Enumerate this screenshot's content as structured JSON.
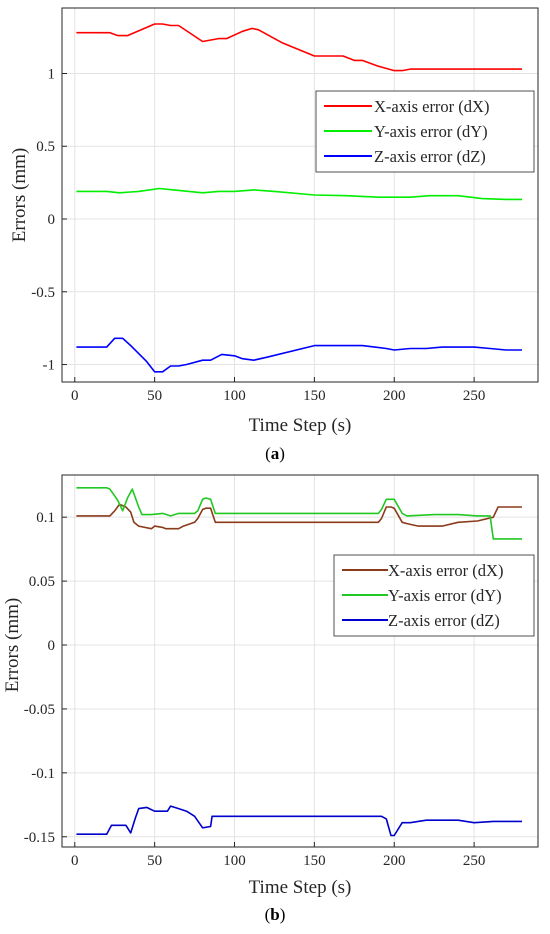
{
  "figure": {
    "captions": [
      {
        "open": "(",
        "letter": "a",
        "close": ")"
      },
      {
        "open": "(",
        "letter": "b",
        "close": ")"
      }
    ]
  },
  "chart_data": [
    {
      "type": "line",
      "panel": "a",
      "xlabel": "Time Step (s)",
      "ylabel": "Errors (mm)",
      "xlim": [
        -8,
        290
      ],
      "ylim": [
        -1.12,
        1.45
      ],
      "xticks": [
        0,
        50,
        100,
        150,
        200,
        250
      ],
      "xtick_labels": [
        "0",
        "50",
        "100",
        "150",
        "200",
        "250"
      ],
      "yticks": [
        -1,
        -0.5,
        0,
        0.5,
        1
      ],
      "ytick_labels": [
        "-1",
        "-0.5",
        "0",
        "0.5",
        "1"
      ],
      "grid": true,
      "legend_position": "right, upper-middle",
      "series": [
        {
          "name": "X-axis error (dX)",
          "color": "#ff0000",
          "x": [
            1,
            22,
            27,
            33,
            50,
            55,
            60,
            65,
            80,
            90,
            95,
            105,
            111,
            115,
            130,
            150,
            160,
            168,
            175,
            180,
            190,
            200,
            205,
            210,
            220,
            230,
            240,
            250,
            260,
            270,
            280
          ],
          "y": [
            1.28,
            1.28,
            1.26,
            1.26,
            1.34,
            1.34,
            1.33,
            1.33,
            1.22,
            1.24,
            1.24,
            1.29,
            1.31,
            1.3,
            1.21,
            1.12,
            1.12,
            1.12,
            1.09,
            1.09,
            1.05,
            1.02,
            1.02,
            1.03,
            1.03,
            1.03,
            1.03,
            1.03,
            1.03,
            1.03,
            1.03
          ]
        },
        {
          "name": "Y-axis error (dY)",
          "color": "#00ee00",
          "x": [
            1,
            20,
            28,
            40,
            53,
            62,
            80,
            90,
            100,
            112,
            125,
            150,
            170,
            190,
            200,
            210,
            222,
            240,
            255,
            270,
            280
          ],
          "y": [
            0.19,
            0.19,
            0.18,
            0.19,
            0.21,
            0.2,
            0.18,
            0.19,
            0.19,
            0.2,
            0.19,
            0.165,
            0.16,
            0.15,
            0.15,
            0.15,
            0.16,
            0.16,
            0.14,
            0.135,
            0.135
          ]
        },
        {
          "name": "Z-axis error (dZ)",
          "color": "#0000ff",
          "x": [
            1,
            20,
            25,
            30,
            35,
            45,
            50,
            55,
            60,
            65,
            70,
            80,
            85,
            92,
            100,
            105,
            112,
            120,
            150,
            170,
            180,
            195,
            200,
            210,
            220,
            230,
            240,
            250,
            260,
            270,
            280
          ],
          "y": [
            -0.88,
            -0.88,
            -0.82,
            -0.82,
            -0.87,
            -0.98,
            -1.05,
            -1.05,
            -1.01,
            -1.01,
            -1.0,
            -0.97,
            -0.97,
            -0.93,
            -0.94,
            -0.96,
            -0.97,
            -0.95,
            -0.87,
            -0.87,
            -0.87,
            -0.89,
            -0.9,
            -0.89,
            -0.89,
            -0.88,
            -0.88,
            -0.88,
            -0.89,
            -0.9,
            -0.9
          ]
        }
      ]
    },
    {
      "type": "line",
      "panel": "b",
      "xlabel": "Time Step (s)",
      "ylabel": "Errors (mm)",
      "xlim": [
        -8,
        290
      ],
      "ylim": [
        -0.158,
        0.133
      ],
      "xticks": [
        0,
        50,
        100,
        150,
        200,
        250
      ],
      "xtick_labels": [
        "0",
        "50",
        "100",
        "150",
        "200",
        "250"
      ],
      "yticks": [
        -0.15,
        -0.1,
        -0.05,
        0,
        0.05,
        0.1
      ],
      "ytick_labels": [
        "-0.15",
        "-0.1",
        "-0.05",
        "0",
        "0.05",
        "0.1"
      ],
      "grid": true,
      "legend_position": "right, upper-middle",
      "series": [
        {
          "name": "X-axis error (dX)",
          "color": "#8b3a1a",
          "x": [
            1,
            22,
            25,
            28,
            32,
            35,
            37,
            40,
            48,
            50,
            55,
            57,
            65,
            68,
            75,
            77,
            80,
            82,
            85,
            88,
            190,
            192,
            195,
            198,
            200,
            205,
            208,
            215,
            230,
            240,
            252,
            262,
            265,
            280
          ],
          "y": [
            0.101,
            0.101,
            0.105,
            0.11,
            0.108,
            0.104,
            0.096,
            0.093,
            0.091,
            0.093,
            0.092,
            0.091,
            0.091,
            0.093,
            0.096,
            0.099,
            0.106,
            0.107,
            0.107,
            0.096,
            0.096,
            0.099,
            0.108,
            0.108,
            0.107,
            0.096,
            0.095,
            0.093,
            0.093,
            0.096,
            0.097,
            0.1,
            0.108,
            0.108
          ]
        },
        {
          "name": "Y-axis error (dY)",
          "color": "#22c822",
          "x": [
            1,
            20,
            22,
            27,
            30,
            33,
            36,
            40,
            42,
            48,
            55,
            60,
            65,
            75,
            77,
            80,
            82,
            85,
            88,
            190,
            192,
            195,
            198,
            200,
            205,
            208,
            225,
            240,
            252,
            260,
            262,
            280
          ],
          "y": [
            0.123,
            0.123,
            0.122,
            0.113,
            0.105,
            0.115,
            0.122,
            0.108,
            0.102,
            0.102,
            0.103,
            0.101,
            0.103,
            0.103,
            0.105,
            0.114,
            0.115,
            0.114,
            0.103,
            0.103,
            0.106,
            0.114,
            0.114,
            0.114,
            0.103,
            0.101,
            0.102,
            0.102,
            0.101,
            0.101,
            0.083,
            0.083
          ]
        },
        {
          "name": "Z-axis error (dZ)",
          "color": "#0000cc",
          "x": [
            1,
            20,
            23,
            32,
            35,
            38,
            40,
            45,
            50,
            58,
            60,
            65,
            70,
            75,
            80,
            85,
            86,
            180,
            192,
            195,
            198,
            200,
            205,
            210,
            220,
            240,
            250,
            262,
            270,
            280
          ],
          "y": [
            -0.148,
            -0.148,
            -0.141,
            -0.141,
            -0.147,
            -0.135,
            -0.128,
            -0.127,
            -0.13,
            -0.13,
            -0.126,
            -0.128,
            -0.13,
            -0.134,
            -0.143,
            -0.142,
            -0.134,
            -0.134,
            -0.134,
            -0.136,
            -0.149,
            -0.149,
            -0.139,
            -0.139,
            -0.137,
            -0.137,
            -0.139,
            -0.138,
            -0.138,
            -0.138
          ]
        }
      ]
    }
  ]
}
